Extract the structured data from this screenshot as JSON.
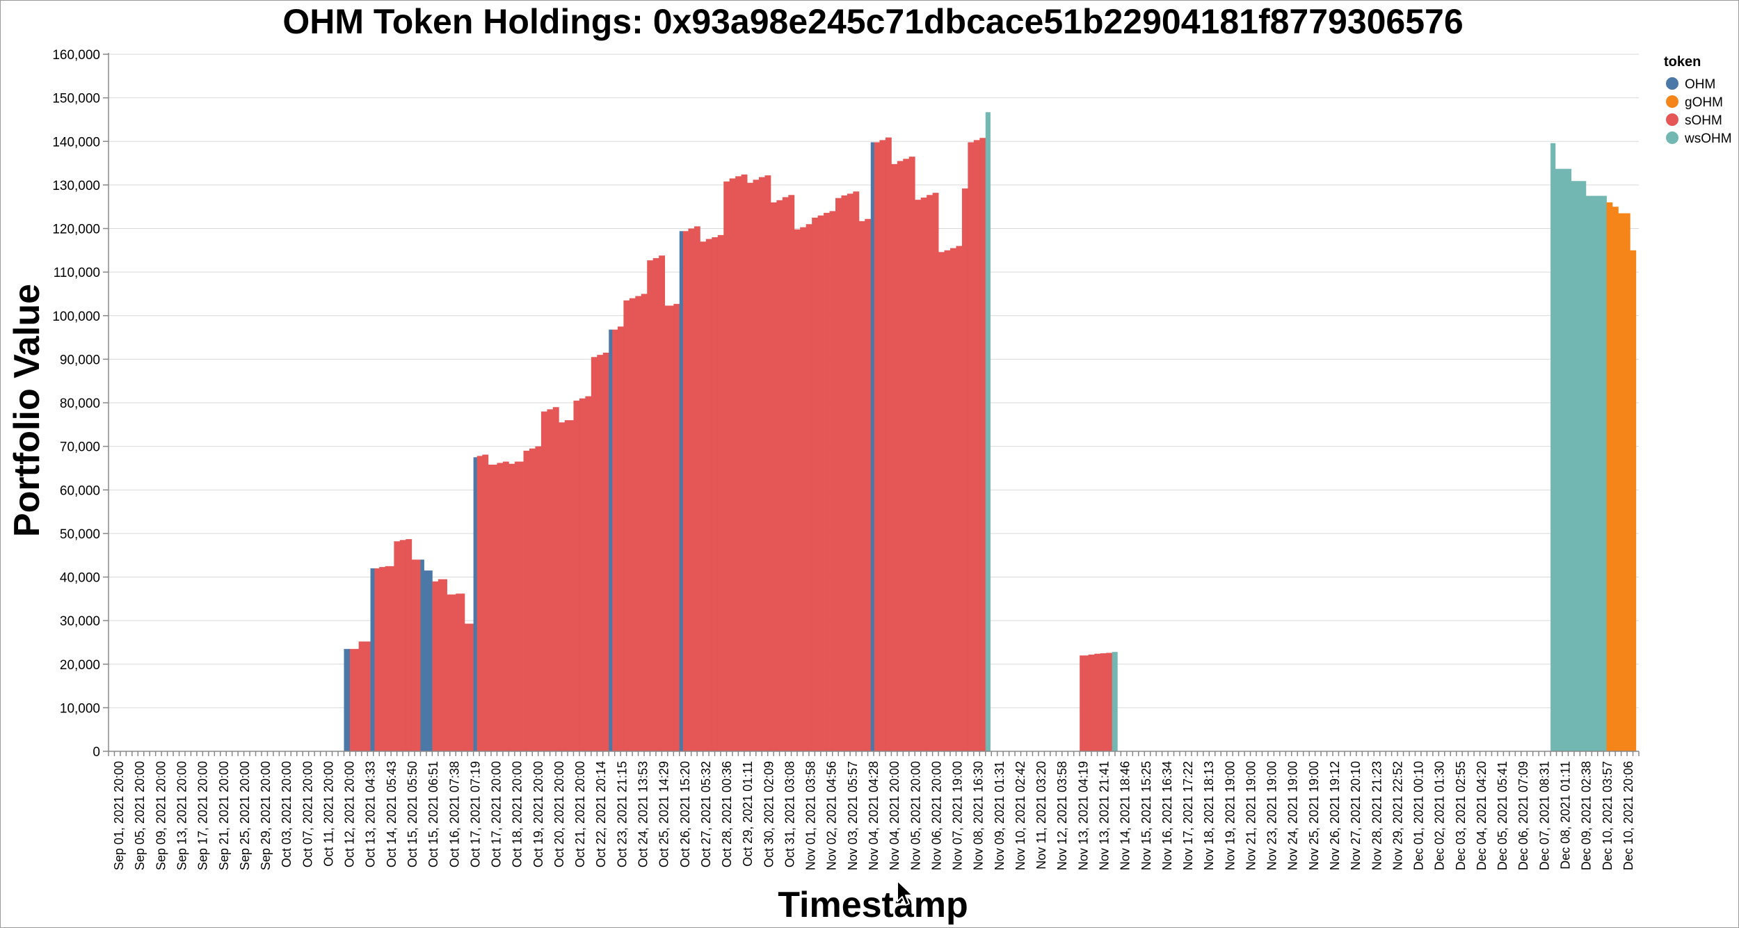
{
  "colors": {
    "OHM": "#4c78a8",
    "gOHM": "#f58518",
    "sOHM": "#e45756",
    "wsOHM": "#72b7b2"
  },
  "chart_data": {
    "type": "bar",
    "title": "OHM Token Holdings: 0x93a98e245c71dbcace51b22904181f8779306576",
    "xlabel": "Timestamp",
    "ylabel": "Portfolio Value",
    "ylim": [
      0,
      160000
    ],
    "yticks": [
      0,
      10000,
      20000,
      30000,
      40000,
      50000,
      60000,
      70000,
      80000,
      90000,
      100000,
      110000,
      120000,
      130000,
      140000,
      150000,
      160000
    ],
    "grid": true,
    "legend_title": "token",
    "legend_position": "top-right",
    "legend": [
      "OHM",
      "gOHM",
      "sOHM",
      "wsOHM"
    ],
    "categories": [
      "Sep 01, 2021 20:00",
      "Sep 05, 2021 20:00",
      "Sep 09, 2021 20:00",
      "Sep 13, 2021 20:00",
      "Sep 17, 2021 20:00",
      "Sep 21, 2021 20:00",
      "Sep 25, 2021 20:00",
      "Sep 29, 2021 20:00",
      "Oct 03, 2021 20:00",
      "Oct 07, 2021 20:00",
      "Oct 11, 2021 20:00",
      "Oct 12, 2021 20:00",
      "Oct 13, 2021 04:33",
      "Oct 14, 2021 05:43",
      "Oct 15, 2021 05:50",
      "Oct 15, 2021 06:51",
      "Oct 16, 2021 07:38",
      "Oct 17, 2021 07:19",
      "Oct 17, 2021 20:00",
      "Oct 18, 2021 20:00",
      "Oct 19, 2021 20:00",
      "Oct 20, 2021 20:00",
      "Oct 21, 2021 20:00",
      "Oct 22, 2021 20:14",
      "Oct 23, 2021 21:15",
      "Oct 24, 2021 13:53",
      "Oct 25, 2021 14:29",
      "Oct 26, 2021 15:20",
      "Oct 27, 2021 05:32",
      "Oct 28, 2021 00:36",
      "Oct 29, 2021 01:11",
      "Oct 30, 2021 02:09",
      "Oct 31, 2021 03:08",
      "Nov 01, 2021 03:58",
      "Nov 02, 2021 04:56",
      "Nov 03, 2021 05:57",
      "Nov 04, 2021 04:28",
      "Nov 04, 2021 20:00",
      "Nov 05, 2021 20:00",
      "Nov 06, 2021 20:00",
      "Nov 07, 2021 19:00",
      "Nov 08, 2021 16:30",
      "Nov 09, 2021 01:31",
      "Nov 10, 2021 02:42",
      "Nov 11, 2021 03:20",
      "Nov 12, 2021 03:58",
      "Nov 13, 2021 04:19",
      "Nov 13, 2021 21:41",
      "Nov 14, 2021 18:46",
      "Nov 15, 2021 15:25",
      "Nov 16, 2021 16:34",
      "Nov 17, 2021 17:22",
      "Nov 18, 2021 18:13",
      "Nov 19, 2021 19:00",
      "Nov 21, 2021 19:00",
      "Nov 23, 2021 19:00",
      "Nov 24, 2021 19:00",
      "Nov 25, 2021 19:00",
      "Nov 26, 2021 19:12",
      "Nov 27, 2021 20:10",
      "Nov 28, 2021 21:23",
      "Nov 29, 2021 22:52",
      "Dec 01, 2021 00:10",
      "Dec 02, 2021 01:30",
      "Dec 03, 2021 02:55",
      "Dec 04, 2021 04:20",
      "Dec 05, 2021 05:41",
      "Dec 06, 2021 07:09",
      "Dec 07, 2021 08:31",
      "Dec 08, 2021 01:11",
      "Dec 09, 2021 02:38",
      "Dec 10, 2021 03:57",
      "Dec 10, 2021 20:06"
    ],
    "bars": [
      {
        "token": "OHM",
        "from": 40,
        "to": 41,
        "value": 23500
      },
      {
        "token": "sOHM",
        "from": 41,
        "to": 42.5,
        "value": 23500
      },
      {
        "token": "sOHM",
        "from": 42.5,
        "to": 44.5,
        "value": 25200
      },
      {
        "token": "OHM",
        "from": 44.5,
        "to": 45.2,
        "value": 42000
      },
      {
        "token": "sOHM",
        "from": 45.2,
        "to": 46,
        "value": 42000
      },
      {
        "token": "sOHM",
        "from": 46,
        "to": 47,
        "value": 42300
      },
      {
        "token": "sOHM",
        "from": 47,
        "to": 48.5,
        "value": 42500
      },
      {
        "token": "sOHM",
        "from": 48.5,
        "to": 49.5,
        "value": 48200
      },
      {
        "token": "sOHM",
        "from": 49.5,
        "to": 50.5,
        "value": 48500
      },
      {
        "token": "sOHM",
        "from": 50.5,
        "to": 51.5,
        "value": 48700
      },
      {
        "token": "sOHM",
        "from": 51.5,
        "to": 53,
        "value": 44000
      },
      {
        "token": "OHM",
        "from": 53,
        "to": 53.6,
        "value": 44000
      },
      {
        "token": "OHM",
        "from": 53.6,
        "to": 55,
        "value": 41500
      },
      {
        "token": "sOHM",
        "from": 55,
        "to": 56,
        "value": 39000
      },
      {
        "token": "sOHM",
        "from": 56,
        "to": 57.5,
        "value": 39500
      },
      {
        "token": "sOHM",
        "from": 57.5,
        "to": 59,
        "value": 36000
      },
      {
        "token": "sOHM",
        "from": 59,
        "to": 60.5,
        "value": 36200
      },
      {
        "token": "sOHM",
        "from": 60.5,
        "to": 62,
        "value": 29300
      },
      {
        "token": "OHM",
        "from": 62,
        "to": 62.6,
        "value": 67500
      },
      {
        "token": "sOHM",
        "from": 62.6,
        "to": 63.5,
        "value": 67800
      },
      {
        "token": "sOHM",
        "from": 63.5,
        "to": 64.5,
        "value": 68100
      },
      {
        "token": "sOHM",
        "from": 64.5,
        "to": 66,
        "value": 65800
      },
      {
        "token": "sOHM",
        "from": 66,
        "to": 67,
        "value": 66200
      },
      {
        "token": "sOHM",
        "from": 67,
        "to": 68,
        "value": 66500
      },
      {
        "token": "sOHM",
        "from": 68,
        "to": 69,
        "value": 66000
      },
      {
        "token": "sOHM",
        "from": 69,
        "to": 70.5,
        "value": 66500
      },
      {
        "token": "sOHM",
        "from": 70.5,
        "to": 71.5,
        "value": 69000
      },
      {
        "token": "sOHM",
        "from": 71.5,
        "to": 72.5,
        "value": 69500
      },
      {
        "token": "sOHM",
        "from": 72.5,
        "to": 73.5,
        "value": 70000
      },
      {
        "token": "sOHM",
        "from": 73.5,
        "to": 74.5,
        "value": 78000
      },
      {
        "token": "sOHM",
        "from": 74.5,
        "to": 75.5,
        "value": 78500
      },
      {
        "token": "sOHM",
        "from": 75.5,
        "to": 76.5,
        "value": 79000
      },
      {
        "token": "sOHM",
        "from": 76.5,
        "to": 77.5,
        "value": 75500
      },
      {
        "token": "sOHM",
        "from": 77.5,
        "to": 79,
        "value": 76000
      },
      {
        "token": "sOHM",
        "from": 79,
        "to": 80,
        "value": 80500
      },
      {
        "token": "sOHM",
        "from": 80,
        "to": 81,
        "value": 81000
      },
      {
        "token": "sOHM",
        "from": 81,
        "to": 82,
        "value": 81500
      },
      {
        "token": "sOHM",
        "from": 82,
        "to": 83,
        "value": 90500
      },
      {
        "token": "sOHM",
        "from": 83,
        "to": 84,
        "value": 91000
      },
      {
        "token": "sOHM",
        "from": 84,
        "to": 85,
        "value": 91500
      },
      {
        "token": "OHM",
        "from": 85,
        "to": 85.6,
        "value": 96800
      },
      {
        "token": "sOHM",
        "from": 85.6,
        "to": 86.5,
        "value": 96800
      },
      {
        "token": "sOHM",
        "from": 86.5,
        "to": 87.5,
        "value": 97500
      },
      {
        "token": "sOHM",
        "from": 87.5,
        "to": 88.5,
        "value": 103500
      },
      {
        "token": "sOHM",
        "from": 88.5,
        "to": 89.5,
        "value": 104000
      },
      {
        "token": "sOHM",
        "from": 89.5,
        "to": 90.5,
        "value": 104500
      },
      {
        "token": "sOHM",
        "from": 90.5,
        "to": 91.5,
        "value": 105000
      },
      {
        "token": "sOHM",
        "from": 91.5,
        "to": 92.5,
        "value": 112700
      },
      {
        "token": "sOHM",
        "from": 92.5,
        "to": 93.5,
        "value": 113200
      },
      {
        "token": "sOHM",
        "from": 93.5,
        "to": 94.5,
        "value": 113800
      },
      {
        "token": "sOHM",
        "from": 94.5,
        "to": 96,
        "value": 102300
      },
      {
        "token": "sOHM",
        "from": 96,
        "to": 97,
        "value": 102700
      },
      {
        "token": "OHM",
        "from": 97,
        "to": 97.6,
        "value": 119400
      },
      {
        "token": "sOHM",
        "from": 97.6,
        "to": 98.5,
        "value": 119400
      },
      {
        "token": "sOHM",
        "from": 98.5,
        "to": 99.5,
        "value": 120000
      },
      {
        "token": "sOHM",
        "from": 99.5,
        "to": 100.5,
        "value": 120500
      },
      {
        "token": "sOHM",
        "from": 100.5,
        "to": 101.5,
        "value": 117000
      },
      {
        "token": "sOHM",
        "from": 101.5,
        "to": 102.5,
        "value": 117600
      },
      {
        "token": "sOHM",
        "from": 102.5,
        "to": 103.5,
        "value": 118000
      },
      {
        "token": "sOHM",
        "from": 103.5,
        "to": 104.5,
        "value": 118500
      },
      {
        "token": "sOHM",
        "from": 104.5,
        "to": 105.5,
        "value": 130800
      },
      {
        "token": "sOHM",
        "from": 105.5,
        "to": 106.5,
        "value": 131500
      },
      {
        "token": "sOHM",
        "from": 106.5,
        "to": 107.5,
        "value": 132000
      },
      {
        "token": "sOHM",
        "from": 107.5,
        "to": 108.5,
        "value": 132400
      },
      {
        "token": "sOHM",
        "from": 108.5,
        "to": 109.5,
        "value": 130500
      },
      {
        "token": "sOHM",
        "from": 109.5,
        "to": 110.5,
        "value": 131200
      },
      {
        "token": "sOHM",
        "from": 110.5,
        "to": 111.5,
        "value": 131800
      },
      {
        "token": "sOHM",
        "from": 111.5,
        "to": 112.5,
        "value": 132200
      },
      {
        "token": "sOHM",
        "from": 112.5,
        "to": 113.5,
        "value": 126000
      },
      {
        "token": "sOHM",
        "from": 113.5,
        "to": 114.5,
        "value": 126500
      },
      {
        "token": "sOHM",
        "from": 114.5,
        "to": 115.5,
        "value": 127200
      },
      {
        "token": "sOHM",
        "from": 115.5,
        "to": 116.5,
        "value": 127700
      },
      {
        "token": "sOHM",
        "from": 116.5,
        "to": 117.5,
        "value": 119800
      },
      {
        "token": "sOHM",
        "from": 117.5,
        "to": 118.5,
        "value": 120300
      },
      {
        "token": "sOHM",
        "from": 118.5,
        "to": 119.5,
        "value": 121000
      },
      {
        "token": "sOHM",
        "from": 119.5,
        "to": 120.5,
        "value": 122500
      },
      {
        "token": "sOHM",
        "from": 120.5,
        "to": 121.5,
        "value": 123000
      },
      {
        "token": "sOHM",
        "from": 121.5,
        "to": 122.5,
        "value": 123600
      },
      {
        "token": "sOHM",
        "from": 122.5,
        "to": 123.5,
        "value": 124000
      },
      {
        "token": "sOHM",
        "from": 123.5,
        "to": 124.5,
        "value": 127000
      },
      {
        "token": "sOHM",
        "from": 124.5,
        "to": 125.5,
        "value": 127600
      },
      {
        "token": "sOHM",
        "from": 125.5,
        "to": 126.5,
        "value": 128000
      },
      {
        "token": "sOHM",
        "from": 126.5,
        "to": 127.5,
        "value": 128500
      },
      {
        "token": "sOHM",
        "from": 127.5,
        "to": 128.5,
        "value": 121700
      },
      {
        "token": "sOHM",
        "from": 128.5,
        "to": 129.5,
        "value": 122200
      },
      {
        "token": "OHM",
        "from": 129.5,
        "to": 130.1,
        "value": 139800
      },
      {
        "token": "sOHM",
        "from": 130.1,
        "to": 131,
        "value": 139800
      },
      {
        "token": "sOHM",
        "from": 131,
        "to": 132,
        "value": 140300
      },
      {
        "token": "sOHM",
        "from": 132,
        "to": 133,
        "value": 140900
      },
      {
        "token": "sOHM",
        "from": 133,
        "to": 134,
        "value": 134800
      },
      {
        "token": "sOHM",
        "from": 134,
        "to": 135,
        "value": 135500
      },
      {
        "token": "sOHM",
        "from": 135,
        "to": 136,
        "value": 136000
      },
      {
        "token": "sOHM",
        "from": 136,
        "to": 137,
        "value": 136500
      },
      {
        "token": "sOHM",
        "from": 137,
        "to": 138,
        "value": 126600
      },
      {
        "token": "sOHM",
        "from": 138,
        "to": 139,
        "value": 127100
      },
      {
        "token": "sOHM",
        "from": 139,
        "to": 140,
        "value": 127700
      },
      {
        "token": "sOHM",
        "from": 140,
        "to": 141,
        "value": 128200
      },
      {
        "token": "sOHM",
        "from": 141,
        "to": 142,
        "value": 114600
      },
      {
        "token": "sOHM",
        "from": 142,
        "to": 143,
        "value": 115000
      },
      {
        "token": "sOHM",
        "from": 143,
        "to": 144,
        "value": 115500
      },
      {
        "token": "sOHM",
        "from": 144,
        "to": 145,
        "value": 116000
      },
      {
        "token": "sOHM",
        "from": 145,
        "to": 146,
        "value": 129200
      },
      {
        "token": "sOHM",
        "from": 146,
        "to": 147,
        "value": 139800
      },
      {
        "token": "sOHM",
        "from": 147,
        "to": 148,
        "value": 140300
      },
      {
        "token": "sOHM",
        "from": 148,
        "to": 149,
        "value": 140800
      },
      {
        "token": "wsOHM",
        "from": 149,
        "to": 149.8,
        "value": 146700
      },
      {
        "token": "sOHM",
        "from": 165,
        "to": 166.5,
        "value": 22000
      },
      {
        "token": "sOHM",
        "from": 166.5,
        "to": 167.5,
        "value": 22200
      },
      {
        "token": "sOHM",
        "from": 167.5,
        "to": 168.5,
        "value": 22400
      },
      {
        "token": "sOHM",
        "from": 168.5,
        "to": 169.5,
        "value": 22500
      },
      {
        "token": "sOHM",
        "from": 169.5,
        "to": 170.5,
        "value": 22600
      },
      {
        "token": "wsOHM",
        "from": 170.5,
        "to": 171.4,
        "value": 22800
      },
      {
        "token": "wsOHM",
        "from": 245,
        "to": 245.8,
        "value": 139600
      },
      {
        "token": "wsOHM",
        "from": 245.8,
        "to": 248.5,
        "value": 133700
      },
      {
        "token": "wsOHM",
        "from": 248.5,
        "to": 251,
        "value": 130900
      },
      {
        "token": "wsOHM",
        "from": 251,
        "to": 254.5,
        "value": 127500
      },
      {
        "token": "gOHM",
        "from": 254.5,
        "to": 255.5,
        "value": 126000
      },
      {
        "token": "gOHM",
        "from": 255.5,
        "to": 256.5,
        "value": 125000
      },
      {
        "token": "gOHM",
        "from": 256.5,
        "to": 258.5,
        "value": 123500
      },
      {
        "token": "gOHM",
        "from": 258.5,
        "to": 259.5,
        "value": 115000
      }
    ]
  }
}
